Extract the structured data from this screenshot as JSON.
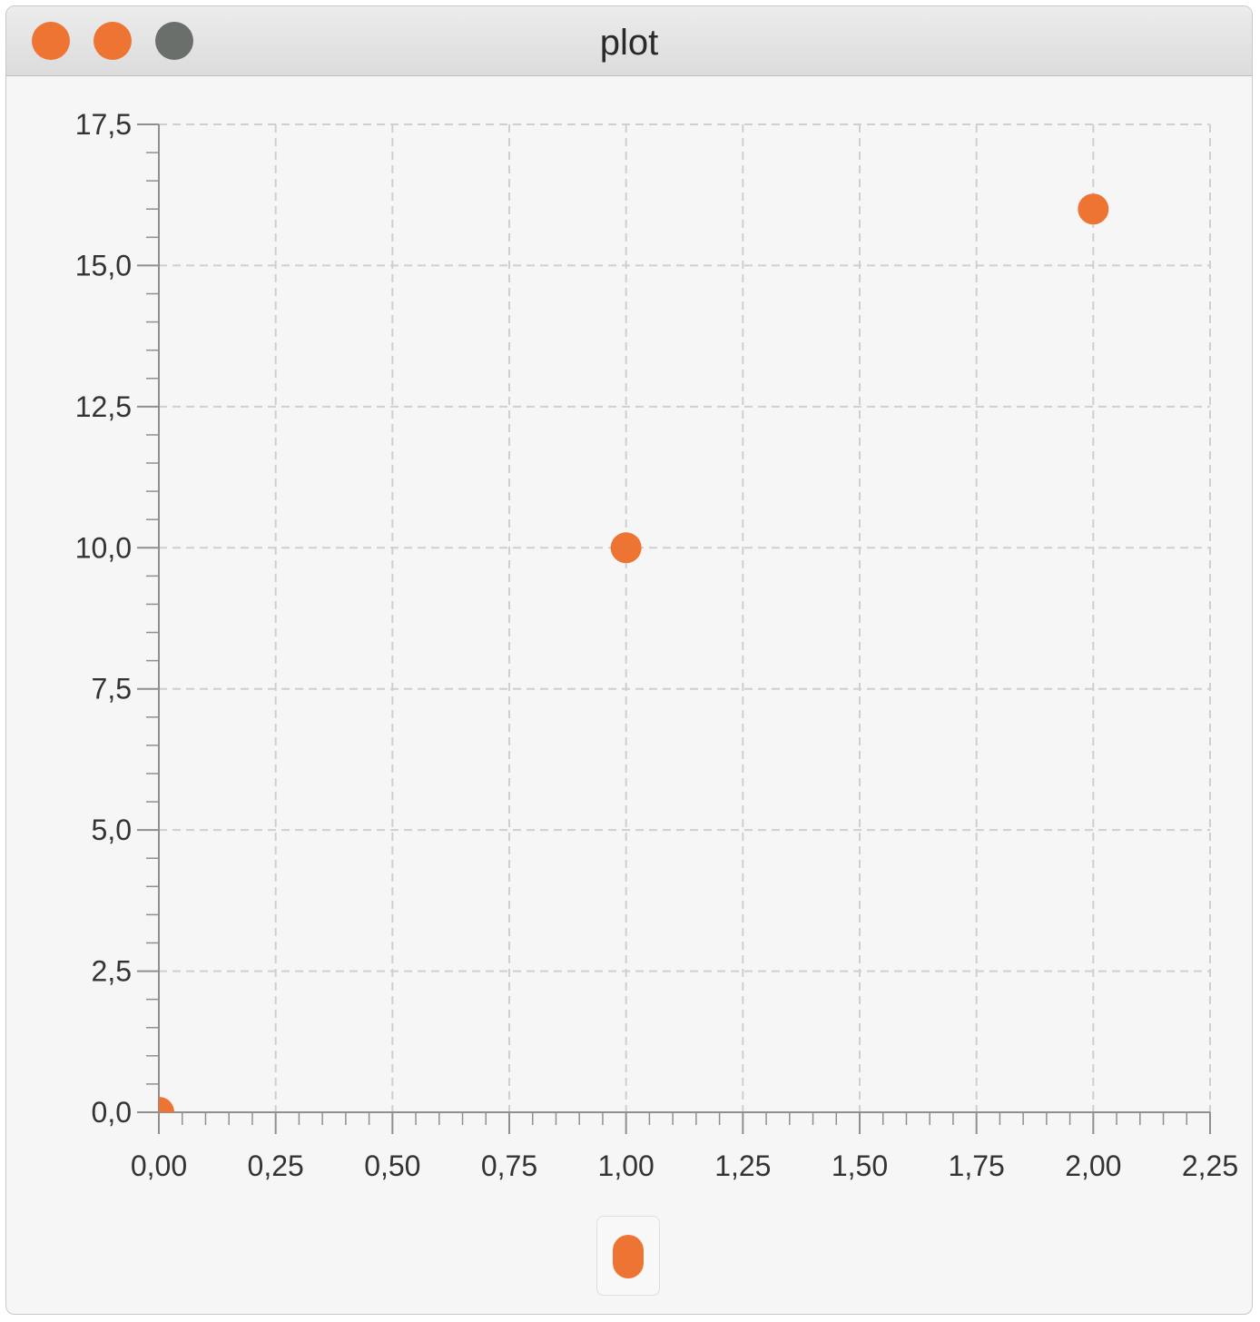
{
  "window": {
    "title": "plot",
    "buttons": [
      {
        "name": "close",
        "color": "#ee7433"
      },
      {
        "name": "minimize",
        "color": "#ee7433"
      },
      {
        "name": "zoom",
        "color": "#6b6f6c"
      }
    ]
  },
  "colors": {
    "series": "#ee7433",
    "grid": "#cfcfcf",
    "axis": "#8f8f8f"
  },
  "chart_data": {
    "type": "scatter",
    "title": "",
    "xlabel": "",
    "ylabel": "",
    "xlim": [
      0,
      2.25
    ],
    "ylim": [
      0,
      17.5
    ],
    "x_ticks": [
      {
        "value": 0,
        "label": "0,00"
      },
      {
        "value": 0.25,
        "label": "0,25"
      },
      {
        "value": 0.5,
        "label": "0,50"
      },
      {
        "value": 0.75,
        "label": "0,75"
      },
      {
        "value": 1.0,
        "label": "1,00"
      },
      {
        "value": 1.25,
        "label": "1,25"
      },
      {
        "value": 1.5,
        "label": "1,50"
      },
      {
        "value": 1.75,
        "label": "1,75"
      },
      {
        "value": 2.0,
        "label": "2,00"
      },
      {
        "value": 2.25,
        "label": "2,25"
      }
    ],
    "y_ticks": [
      {
        "value": 0,
        "label": "0,0"
      },
      {
        "value": 2.5,
        "label": "2,5"
      },
      {
        "value": 5.0,
        "label": "5,0"
      },
      {
        "value": 7.5,
        "label": "7,5"
      },
      {
        "value": 10.0,
        "label": "10,0"
      },
      {
        "value": 12.5,
        "label": "12,5"
      },
      {
        "value": 15.0,
        "label": "15,0"
      },
      {
        "value": 17.5,
        "label": "17,5"
      }
    ],
    "x_minor_per_major": 5,
    "y_minor_per_major": 5,
    "grid": true,
    "grid_style": "dashed",
    "legend": {
      "placement": "bottom-center",
      "entries": [
        {
          "color": "#ee7433"
        }
      ]
    },
    "series": [
      {
        "color": "#ee7433",
        "points": [
          {
            "x": 0,
            "y": 0
          },
          {
            "x": 1,
            "y": 10
          },
          {
            "x": 2,
            "y": 16
          }
        ]
      }
    ]
  }
}
